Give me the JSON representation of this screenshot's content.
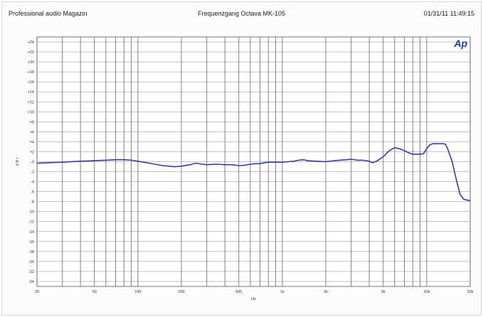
{
  "header": {
    "left": "Professional audio Magazin",
    "center": "Frequenzgang Octava MK-105",
    "right": "01/31/11 11:49:15"
  },
  "logo": {
    "text": "Ap",
    "color": "#1e3fa8"
  },
  "chart_data": {
    "type": "line",
    "title": "Frequenzgang Octava MK-105",
    "xlabel": "Hz",
    "ylabel": "d B r",
    "x_scale": "log",
    "xlim": [
      20,
      20000
    ],
    "ylim": [
      -25,
      25
    ],
    "grid": true,
    "x_ticks": [
      {
        "value": 20,
        "label": "20"
      },
      {
        "value": 50,
        "label": "50"
      },
      {
        "value": 100,
        "label": "100"
      },
      {
        "value": 200,
        "label": "200"
      },
      {
        "value": 500,
        "label": "500"
      },
      {
        "value": 1000,
        "label": "1k"
      },
      {
        "value": 2000,
        "label": "2k"
      },
      {
        "value": 5000,
        "label": "5k"
      },
      {
        "value": 10000,
        "label": "10k"
      },
      {
        "value": 20000,
        "label": "20k"
      }
    ],
    "x_grid": [
      20,
      30,
      40,
      50,
      60,
      70,
      80,
      90,
      100,
      200,
      300,
      400,
      500,
      600,
      700,
      800,
      900,
      1000,
      2000,
      3000,
      4000,
      5000,
      6000,
      7000,
      8000,
      9000,
      10000,
      20000
    ],
    "y_ticks": [
      {
        "value": 24,
        "label": "+24"
      },
      {
        "value": 22,
        "label": "+22"
      },
      {
        "value": 20,
        "label": "+20"
      },
      {
        "value": 18,
        "label": "+18"
      },
      {
        "value": 16,
        "label": "+16"
      },
      {
        "value": 14,
        "label": "+14"
      },
      {
        "value": 12,
        "label": "+12"
      },
      {
        "value": 10,
        "label": "+10"
      },
      {
        "value": 8,
        "label": "+8"
      },
      {
        "value": 6,
        "label": "+6"
      },
      {
        "value": 4,
        "label": "+4"
      },
      {
        "value": 2,
        "label": "+2"
      },
      {
        "value": 0,
        "label": "-0"
      },
      {
        "value": -2,
        "label": "-2"
      },
      {
        "value": -4,
        "label": "-4"
      },
      {
        "value": -6,
        "label": "-6"
      },
      {
        "value": -8,
        "label": "-8"
      },
      {
        "value": -10,
        "label": "-10"
      },
      {
        "value": -12,
        "label": "-12"
      },
      {
        "value": -14,
        "label": "-14"
      },
      {
        "value": -16,
        "label": "-16"
      },
      {
        "value": -18,
        "label": "-18"
      },
      {
        "value": -20,
        "label": "-20"
      },
      {
        "value": -22,
        "label": "-22"
      },
      {
        "value": -24,
        "label": "-24"
      }
    ],
    "series": [
      {
        "color": "#3a3aa0",
        "points": [
          [
            20,
            -0.3
          ],
          [
            30,
            -0.1
          ],
          [
            40,
            0.1
          ],
          [
            50,
            0.2
          ],
          [
            60,
            0.3
          ],
          [
            70,
            0.4
          ],
          [
            80,
            0.4
          ],
          [
            90,
            0.3
          ],
          [
            100,
            0.1
          ],
          [
            120,
            -0.3
          ],
          [
            150,
            -0.8
          ],
          [
            180,
            -1.0
          ],
          [
            200,
            -0.9
          ],
          [
            230,
            -0.6
          ],
          [
            250,
            -0.3
          ],
          [
            280,
            -0.5
          ],
          [
            300,
            -0.6
          ],
          [
            350,
            -0.5
          ],
          [
            400,
            -0.6
          ],
          [
            450,
            -0.6
          ],
          [
            500,
            -0.8
          ],
          [
            550,
            -0.7
          ],
          [
            600,
            -0.5
          ],
          [
            650,
            -0.4
          ],
          [
            700,
            -0.4
          ],
          [
            750,
            -0.2
          ],
          [
            800,
            -0.1
          ],
          [
            900,
            -0.1
          ],
          [
            1000,
            -0.1
          ],
          [
            1100,
            0.0
          ],
          [
            1200,
            0.1
          ],
          [
            1300,
            0.3
          ],
          [
            1400,
            0.4
          ],
          [
            1500,
            0.2
          ],
          [
            1700,
            0.1
          ],
          [
            2000,
            0.0
          ],
          [
            2300,
            0.2
          ],
          [
            2500,
            0.3
          ],
          [
            2800,
            0.4
          ],
          [
            3000,
            0.5
          ],
          [
            3300,
            0.3
          ],
          [
            3600,
            0.3
          ],
          [
            4000,
            0.1
          ],
          [
            4200,
            -0.2
          ],
          [
            4500,
            0.1
          ],
          [
            5000,
            1.0
          ],
          [
            5500,
            2.2
          ],
          [
            6000,
            2.8
          ],
          [
            6500,
            2.6
          ],
          [
            7000,
            2.2
          ],
          [
            7500,
            1.8
          ],
          [
            8000,
            1.5
          ],
          [
            8500,
            1.5
          ],
          [
            9000,
            1.5
          ],
          [
            9500,
            1.6
          ],
          [
            10000,
            2.6
          ],
          [
            10500,
            3.4
          ],
          [
            11000,
            3.6
          ],
          [
            12000,
            3.6
          ],
          [
            13000,
            3.6
          ],
          [
            13500,
            3.5
          ],
          [
            14000,
            2.5
          ],
          [
            15000,
            0.0
          ],
          [
            16000,
            -3.5
          ],
          [
            17000,
            -6.5
          ],
          [
            18000,
            -7.5
          ],
          [
            19000,
            -7.7
          ],
          [
            20000,
            -7.8
          ]
        ]
      }
    ]
  }
}
